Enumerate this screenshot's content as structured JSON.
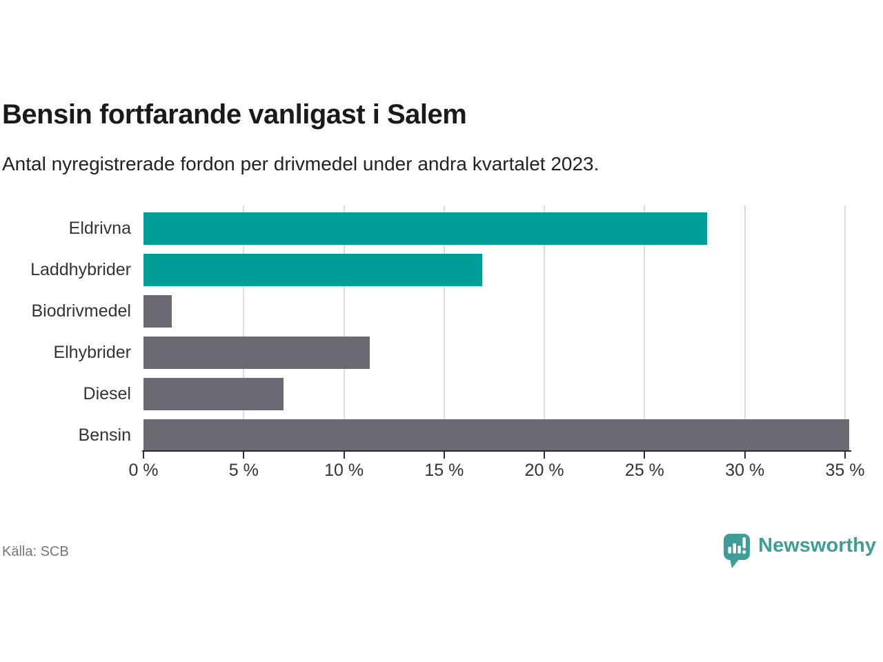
{
  "header": {
    "title": "Bensin fortfarande vanligast i Salem",
    "subtitle": "Antal nyregistrerade fordon per drivmedel under andra kvartalet 2023."
  },
  "chart_data": {
    "type": "bar",
    "orientation": "horizontal",
    "title": "Bensin fortfarande vanligast i Salem",
    "subtitle": "Antal nyregistrerade fordon per drivmedel under andra kvartalet 2023.",
    "categories": [
      "Eldrivna",
      "Laddhybrider",
      "Biodrivmedel",
      "Elhybrider",
      "Diesel",
      "Bensin"
    ],
    "values": [
      28.1,
      16.9,
      1.4,
      11.3,
      7.0,
      35.2
    ],
    "unit": "%",
    "bar_colors": [
      "#009e96",
      "#009e96",
      "#6c6973",
      "#6c6973",
      "#6c6973",
      "#6c6973"
    ],
    "xlim": [
      0,
      35
    ],
    "x_ticks": [
      0,
      5,
      10,
      15,
      20,
      25,
      30,
      35
    ],
    "x_tick_labels": [
      "0 %",
      "5 %",
      "10 %",
      "15 %",
      "20 %",
      "25 %",
      "30 %",
      "35 %"
    ],
    "grid": "vertical-only",
    "legend": "none",
    "xlabel": "",
    "ylabel": ""
  },
  "footer": {
    "source": "Källa: SCB",
    "brand": "Newsworthy"
  },
  "colors": {
    "accent_teal": "#009e96",
    "neutral_gray": "#6c6973",
    "brand_teal": "#3f9d98",
    "grid": "#dcdcdc",
    "axis": "#2b2b2b",
    "text": "#1a1a1a",
    "muted_text": "#76757b"
  },
  "icons": {
    "brand_logo": "newsworthy-speech-bubble-bar-chart-icon"
  }
}
